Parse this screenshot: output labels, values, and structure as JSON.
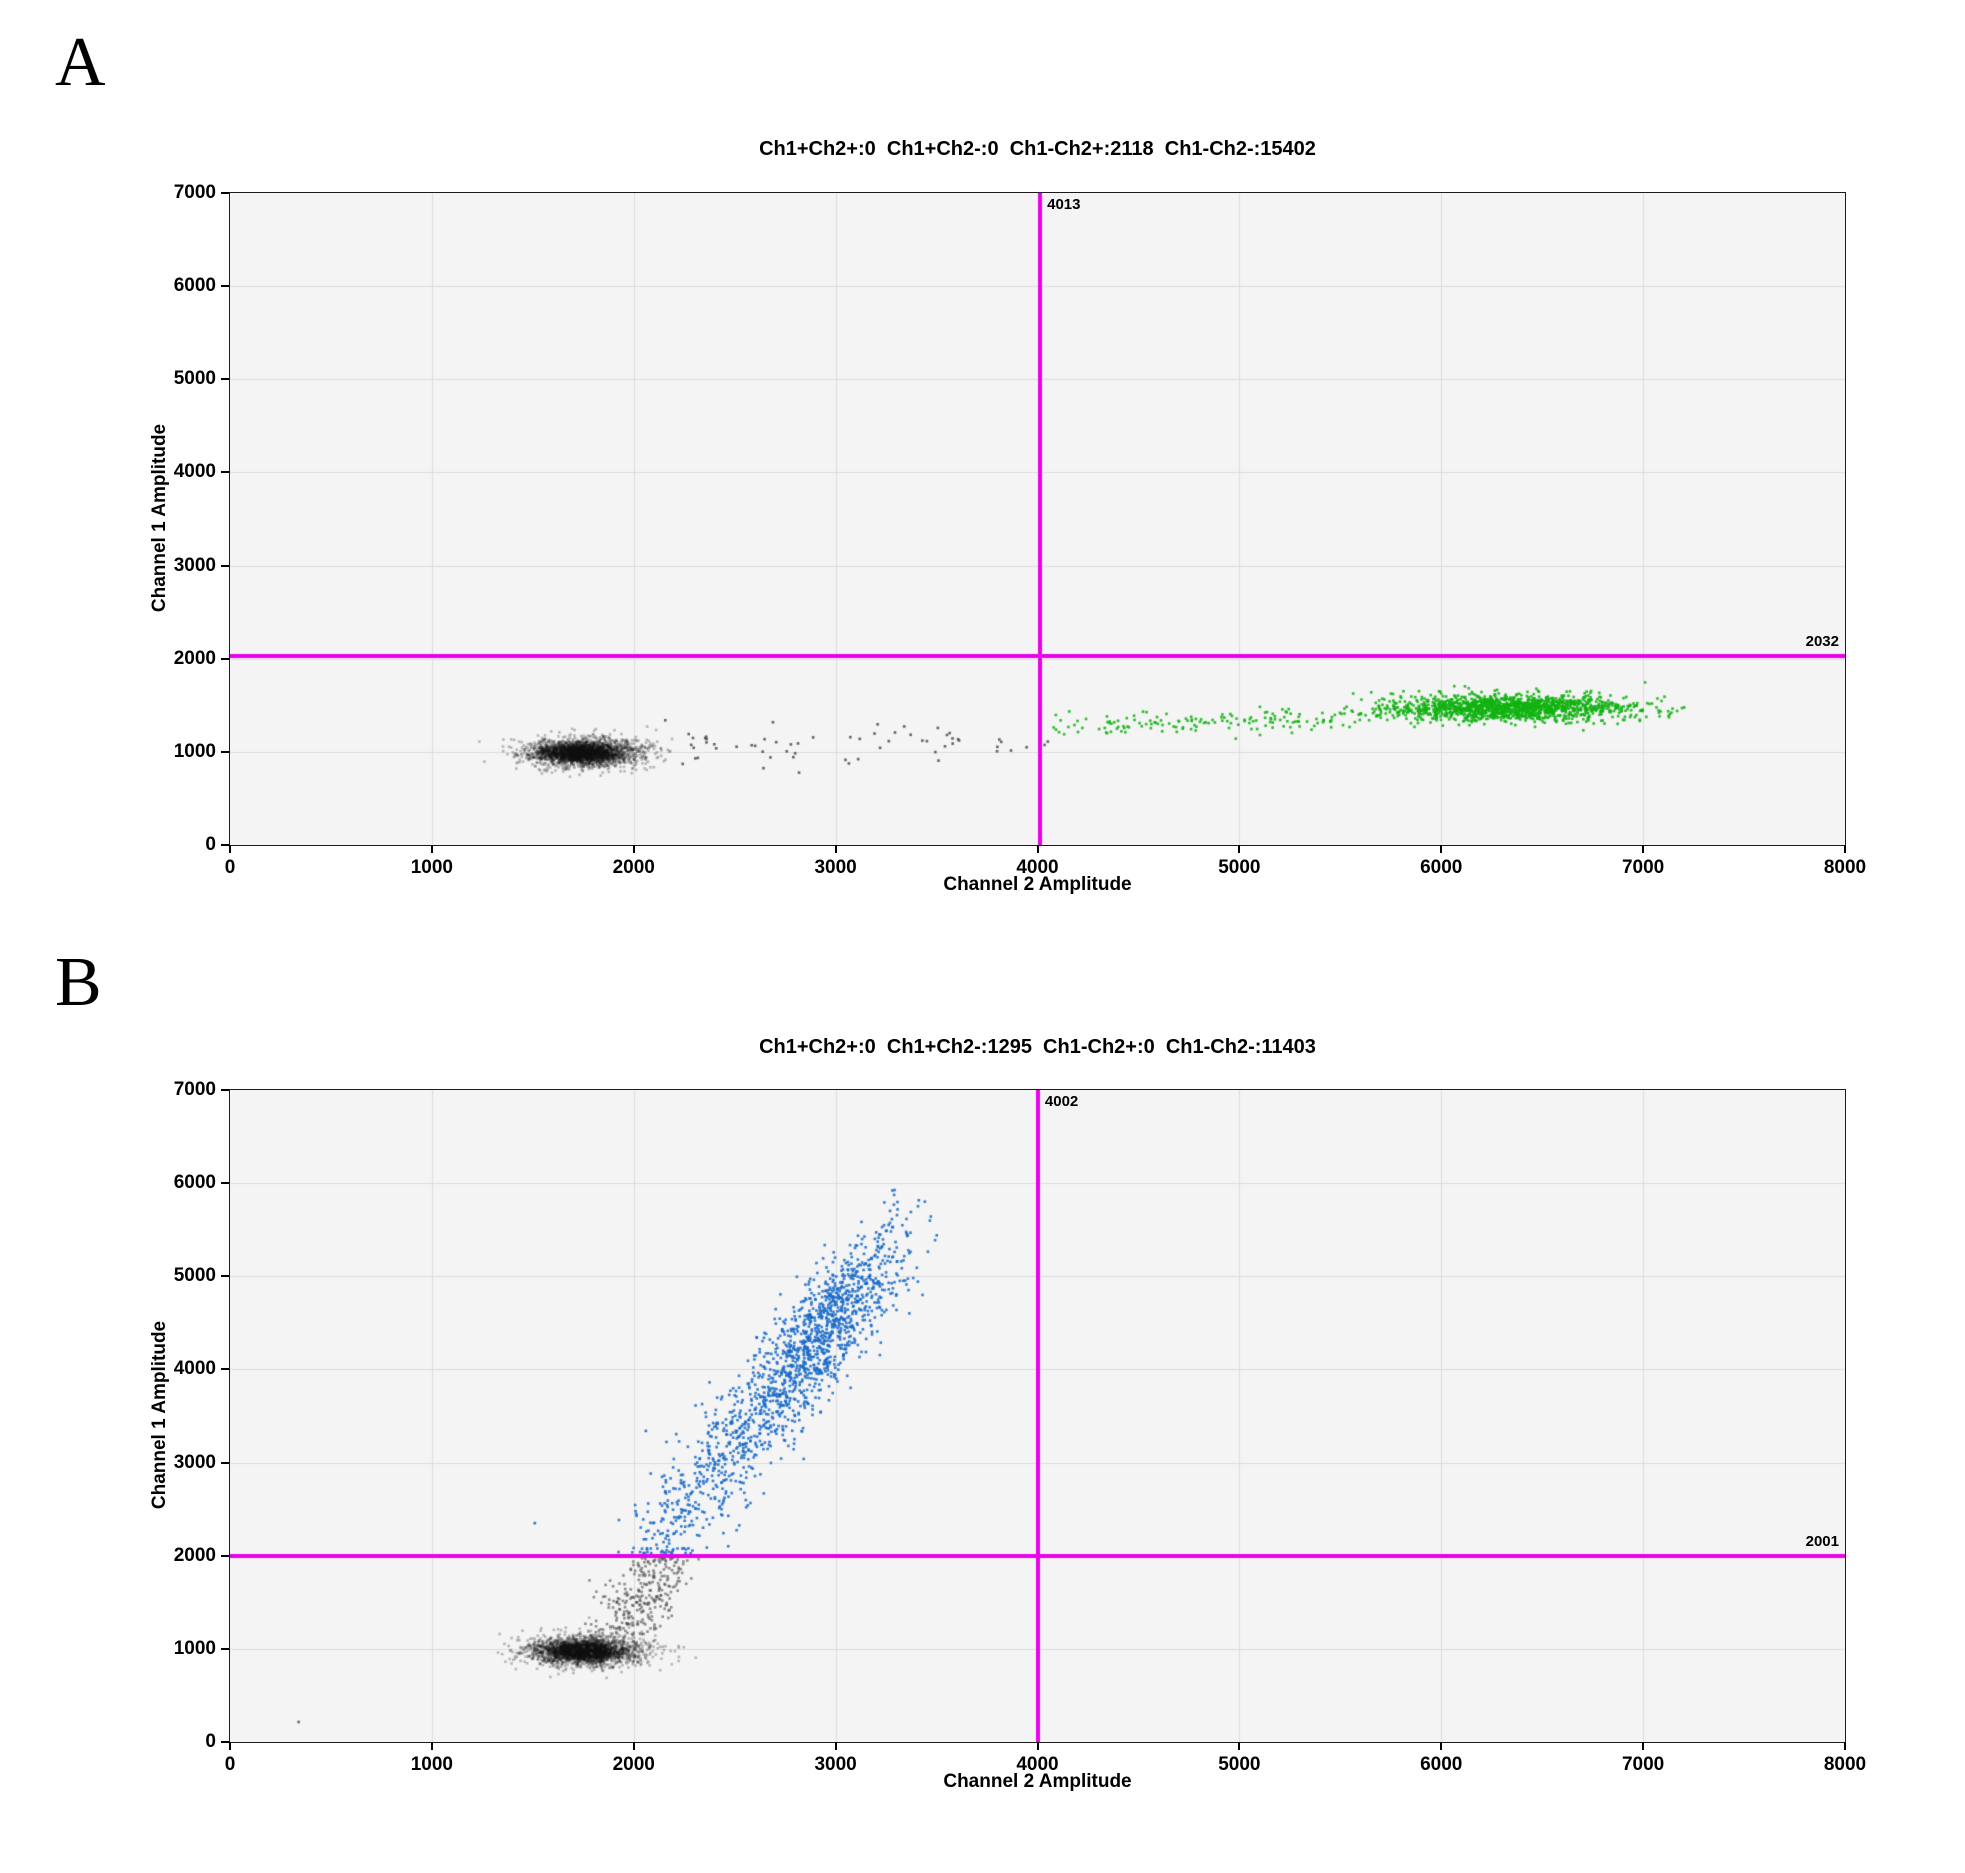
{
  "panels": [
    {
      "letter": "A",
      "title": "Ch1+Ch2+:0  Ch1+Ch2-:0  Ch1-Ch2+:2118  Ch1-Ch2-:15402",
      "xlabel": "Channel 2 Amplitude",
      "ylabel": "Channel 1 Amplitude",
      "threshold_x_label": "4013",
      "threshold_y_label": "2032",
      "quadrant_counts": {
        "ch1pos_ch2pos": 0,
        "ch1pos_ch2neg": 0,
        "ch1neg_ch2pos": 2118,
        "ch1neg_ch2neg": 15402
      }
    },
    {
      "letter": "B",
      "title": "Ch1+Ch2+:0  Ch1+Ch2-:1295  Ch1-Ch2+:0  Ch1-Ch2-:11403",
      "xlabel": "Channel 2 Amplitude",
      "ylabel": "Channel 1 Amplitude",
      "threshold_x_label": "4002",
      "threshold_y_label": "2001",
      "quadrant_counts": {
        "ch1pos_ch2pos": 0,
        "ch1pos_ch2neg": 1295,
        "ch1neg_ch2pos": 0,
        "ch1neg_ch2neg": 11403
      }
    }
  ],
  "colors": {
    "threshold": "#ea00ea",
    "negative_droplets": "#3c3c3c",
    "negative_core": "#111111",
    "ch2_positive_green": "#12b312",
    "ch1_positive_blue": "#1568c8",
    "plot_background": "#f4f4f4",
    "gridline": "#dcdcdc",
    "frame": "#1c1c1c"
  },
  "chart_data": [
    {
      "type": "scatter",
      "panel": "A",
      "title": "Ch1+Ch2+:0  Ch1+Ch2-:0  Ch1-Ch2+:2118  Ch1-Ch2-:15402",
      "xlabel": "Channel 2 Amplitude",
      "ylabel": "Channel 1 Amplitude",
      "xlim": [
        0,
        8000
      ],
      "ylim": [
        0,
        7000
      ],
      "xticks": [
        0,
        1000,
        2000,
        3000,
        4000,
        5000,
        6000,
        7000,
        8000
      ],
      "yticks": [
        0,
        1000,
        2000,
        3000,
        4000,
        5000,
        6000,
        7000
      ],
      "grid": true,
      "legend": "none",
      "thresholds": {
        "x": 4013,
        "y": 2032,
        "color": "#ea00ea"
      },
      "clusters": [
        {
          "name": "negative-droplets",
          "shape": "gauss",
          "n": 1700,
          "cx": 1755,
          "cy": 995,
          "sx": 150,
          "sy": 80,
          "color": "#3c3c3c",
          "alpha": 0.33,
          "seed": 11
        },
        {
          "name": "negative-droplets-core",
          "shape": "gauss",
          "n": 1100,
          "cx": 1740,
          "cy": 990,
          "sx": 85,
          "sy": 48,
          "color": "#111111",
          "alpha": 0.4,
          "seed": 12
        },
        {
          "name": "rain-negative",
          "shape": "band",
          "n": 62,
          "x0": 2060,
          "x1": 4060,
          "y0": 1030,
          "slope": 0.01,
          "sy": 120,
          "color": "#4a4a4a",
          "alpha": 0.85,
          "seed": 13
        },
        {
          "name": "ch2-positive-sparse",
          "shape": "band",
          "n": 150,
          "x0": 4080,
          "x1": 5600,
          "y0": 1285,
          "slope": 0.045,
          "sy": 55,
          "color": "#12b312",
          "alpha": 0.88,
          "seed": 14
        },
        {
          "name": "ch2-positive-dense",
          "shape": "gauss",
          "n": 1500,
          "cx": 6320,
          "cy": 1470,
          "sx": 310,
          "sy": 72,
          "color": "#12b312",
          "alpha": 0.88,
          "seed": 15
        }
      ]
    },
    {
      "type": "scatter",
      "panel": "B",
      "title": "Ch1+Ch2+:0  Ch1+Ch2-:1295  Ch1-Ch2+:0  Ch1-Ch2-:11403",
      "xlabel": "Channel 2 Amplitude",
      "ylabel": "Channel 1 Amplitude",
      "xlim": [
        0,
        8000
      ],
      "ylim": [
        0,
        7000
      ],
      "xticks": [
        0,
        1000,
        2000,
        3000,
        4000,
        5000,
        6000,
        7000,
        8000
      ],
      "yticks": [
        0,
        1000,
        2000,
        3000,
        4000,
        5000,
        6000,
        7000
      ],
      "grid": true,
      "legend": "none",
      "thresholds": {
        "x": 4002,
        "y": 2001,
        "color": "#ea00ea"
      },
      "clusters": [
        {
          "name": "negative-droplets",
          "shape": "gauss",
          "n": 1700,
          "cx": 1760,
          "cy": 980,
          "sx": 150,
          "sy": 85,
          "color": "#3c3c3c",
          "alpha": 0.33,
          "seed": 21
        },
        {
          "name": "negative-droplets-core",
          "shape": "gauss",
          "n": 1100,
          "cx": 1745,
          "cy": 975,
          "sx": 90,
          "sy": 50,
          "color": "#111111",
          "alpha": 0.4,
          "seed": 22
        },
        {
          "name": "negative-tail-rising",
          "shape": "diag",
          "n": 300,
          "x0": 1900,
          "y0": 1150,
          "x1": 2170,
          "y1": 1900,
          "sx": 80,
          "sy": 160,
          "ymax": 1985,
          "color": "#4a4a4a",
          "alpha": 0.6,
          "seed": 23
        },
        {
          "name": "ch1-positive-band",
          "shape": "diag",
          "n": 1600,
          "x0": 2120,
          "y0": 2120,
          "x1": 3330,
          "y1": 5480,
          "sx": 95,
          "sy": 230,
          "ymin": 2025,
          "bias": "upper",
          "color": "#1568c8",
          "alpha": 0.85,
          "seed": 24
        },
        {
          "name": "stray-positive-droplet",
          "shape": "points",
          "pts": [
            [
              2060,
              3340
            ],
            [
              1510,
              2350
            ]
          ],
          "color": "#1568c8",
          "alpha": 0.9
        },
        {
          "name": "stray-negative-droplet",
          "shape": "points",
          "pts": [
            [
              340,
              215
            ]
          ],
          "color": "#5a5a5a",
          "alpha": 0.9
        }
      ]
    }
  ]
}
